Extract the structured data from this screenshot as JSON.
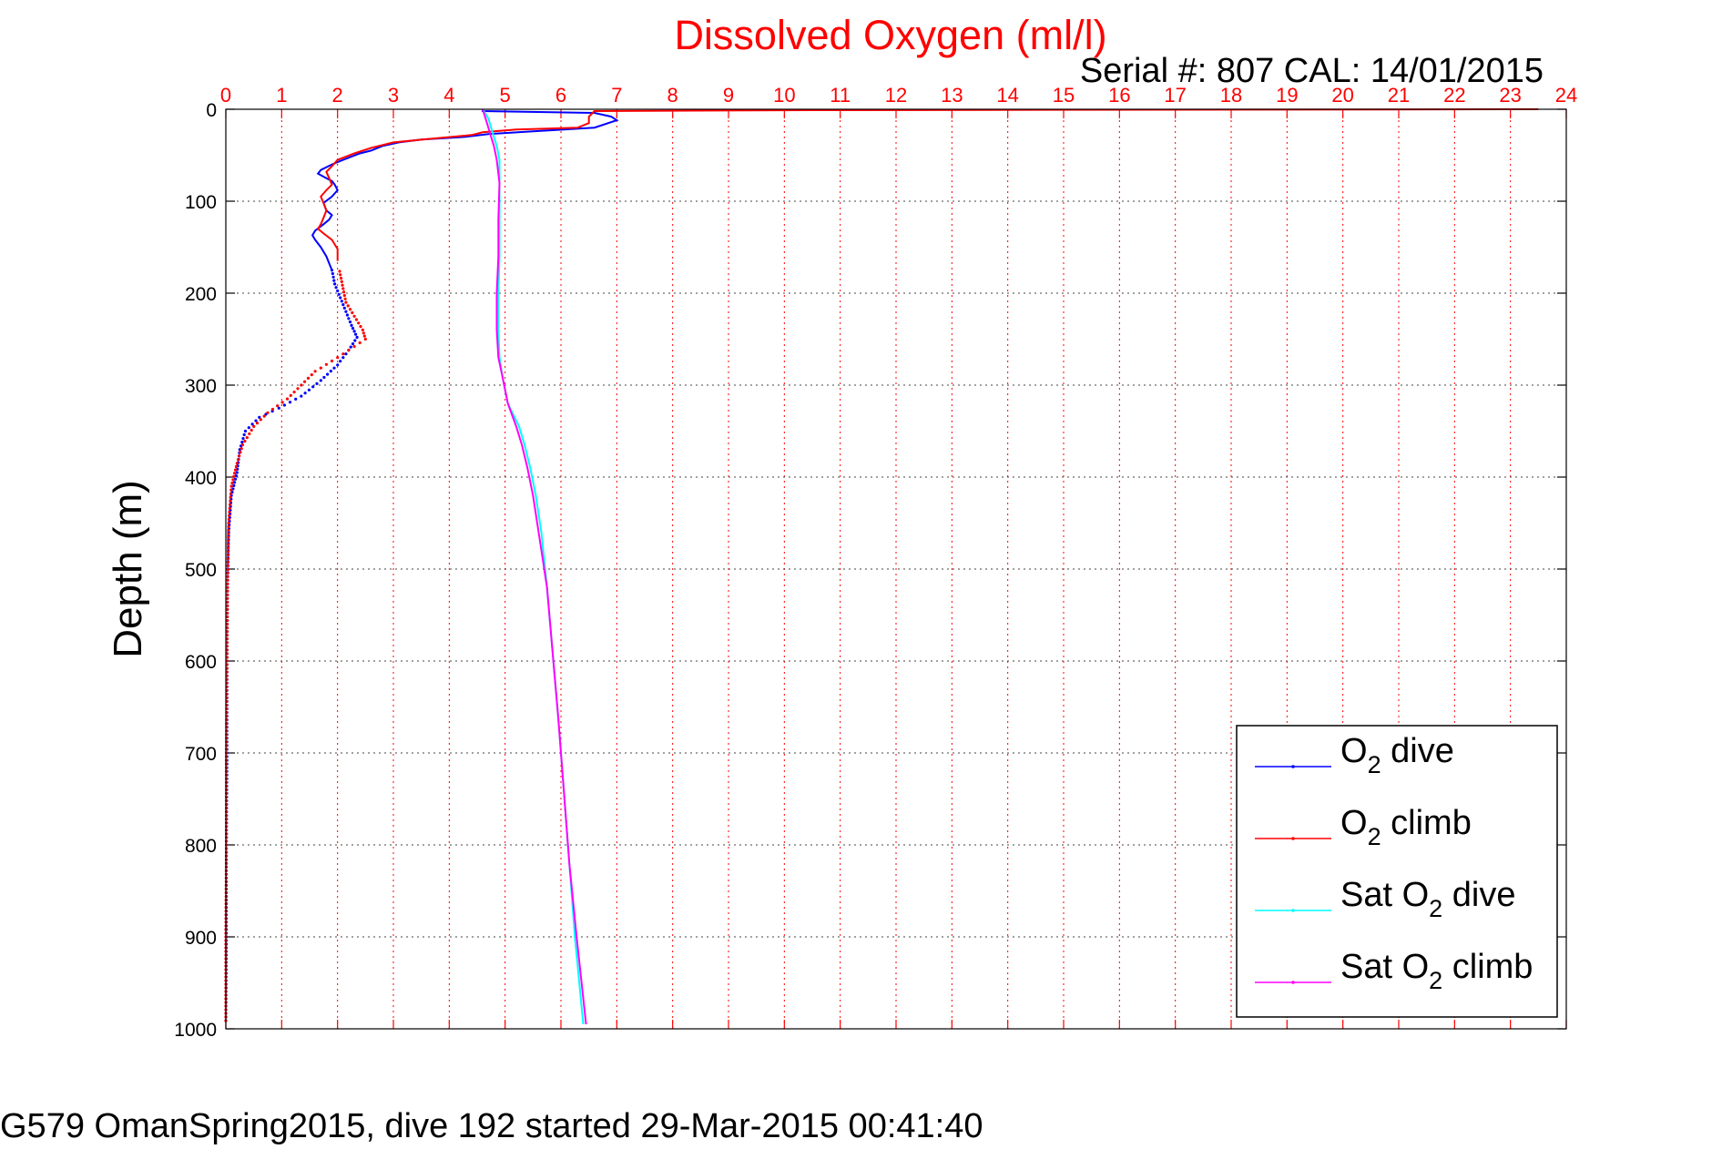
{
  "chart_data": {
    "type": "line",
    "title": "Dissolved Oxygen (ml/l)",
    "serial_label": "Serial #: 807  CAL: 14/01/2015",
    "ylabel": "Depth (m)",
    "caption": "G579 OmanSpring2015, dive 192 started 29-Mar-2015 00:41:40",
    "xlim": [
      0,
      24
    ],
    "ylim": [
      0,
      1000
    ],
    "y_reversed": true,
    "x_axis_position": "top",
    "x_ticks": [
      0,
      1,
      2,
      3,
      4,
      5,
      6,
      7,
      8,
      9,
      10,
      11,
      12,
      13,
      14,
      15,
      16,
      17,
      18,
      19,
      20,
      21,
      22,
      23,
      24
    ],
    "y_ticks": [
      0,
      100,
      200,
      300,
      400,
      500,
      600,
      700,
      800,
      900,
      1000
    ],
    "grid": true,
    "legend_position": "bottom-right",
    "colors": {
      "title": "#ff0000",
      "x_ticks": "#ff0000",
      "grid": "#ff0000",
      "axis": "#000000"
    },
    "series": [
      {
        "name": "O2 dive",
        "legend_main": "O",
        "legend_sub": "2",
        "legend_tail": " dive",
        "color": "#0000ff",
        "style": "line-top-dots-below",
        "points": [
          [
            4.6,
            0
          ],
          [
            4.6,
            2
          ],
          [
            6.6,
            4
          ],
          [
            6.9,
            8
          ],
          [
            7.0,
            12
          ],
          [
            6.6,
            20
          ],
          [
            5.5,
            24
          ],
          [
            4.7,
            27
          ],
          [
            4.3,
            30
          ],
          [
            3.5,
            33
          ],
          [
            3.1,
            36
          ],
          [
            2.8,
            40
          ],
          [
            2.6,
            45
          ],
          [
            2.4,
            48
          ],
          [
            2.1,
            55
          ],
          [
            1.9,
            60
          ],
          [
            1.7,
            66
          ],
          [
            1.65,
            70
          ],
          [
            1.8,
            75
          ],
          [
            1.9,
            78
          ],
          [
            1.95,
            82
          ],
          [
            2.0,
            88
          ],
          [
            1.9,
            95
          ],
          [
            1.75,
            102
          ],
          [
            1.8,
            110
          ],
          [
            1.9,
            115
          ],
          [
            1.85,
            120
          ],
          [
            1.75,
            125
          ],
          [
            1.6,
            132
          ],
          [
            1.55,
            137
          ],
          [
            1.6,
            142
          ],
          [
            1.7,
            150
          ],
          [
            1.8,
            160
          ],
          [
            1.9,
            175
          ],
          [
            1.95,
            190
          ],
          [
            2.05,
            205
          ],
          [
            2.15,
            220
          ],
          [
            2.25,
            235
          ],
          [
            2.35,
            248
          ],
          [
            2.2,
            262
          ],
          [
            2.0,
            278
          ],
          [
            1.7,
            295
          ],
          [
            1.35,
            312
          ],
          [
            0.95,
            325
          ],
          [
            0.6,
            335
          ],
          [
            0.35,
            350
          ],
          [
            0.25,
            370
          ],
          [
            0.2,
            395
          ],
          [
            0.1,
            420
          ],
          [
            0.05,
            460
          ],
          [
            0.03,
            520
          ],
          [
            0.02,
            600
          ],
          [
            0.02,
            700
          ],
          [
            0.01,
            800
          ],
          [
            0.01,
            900
          ],
          [
            0.0,
            995
          ]
        ]
      },
      {
        "name": "O2 climb",
        "legend_main": "O",
        "legend_sub": "2",
        "legend_tail": " climb",
        "color": "#ff0000",
        "style": "line-top-dots-below",
        "points": [
          [
            23.5,
            0
          ],
          [
            10.5,
            1
          ],
          [
            6.6,
            2
          ],
          [
            6.5,
            8
          ],
          [
            6.5,
            15
          ],
          [
            6.3,
            20
          ],
          [
            5.2,
            22
          ],
          [
            4.6,
            25
          ],
          [
            4.4,
            28
          ],
          [
            3.7,
            32
          ],
          [
            3.0,
            36
          ],
          [
            2.6,
            42
          ],
          [
            2.3,
            48
          ],
          [
            2.0,
            55
          ],
          [
            1.9,
            62
          ],
          [
            1.8,
            68
          ],
          [
            1.85,
            75
          ],
          [
            1.9,
            82
          ],
          [
            1.8,
            88
          ],
          [
            1.7,
            95
          ],
          [
            1.75,
            102
          ],
          [
            1.8,
            110
          ],
          [
            1.75,
            118
          ],
          [
            1.7,
            125
          ],
          [
            1.65,
            130
          ],
          [
            1.75,
            135
          ],
          [
            1.9,
            142
          ],
          [
            2.0,
            152
          ],
          [
            2.0,
            165
          ],
          [
            2.05,
            180
          ],
          [
            2.1,
            195
          ],
          [
            2.15,
            210
          ],
          [
            2.3,
            225
          ],
          [
            2.45,
            240
          ],
          [
            2.5,
            250
          ],
          [
            2.3,
            258
          ],
          [
            2.0,
            270
          ],
          [
            1.6,
            285
          ],
          [
            1.35,
            300
          ],
          [
            1.1,
            315
          ],
          [
            0.75,
            330
          ],
          [
            0.5,
            345
          ],
          [
            0.3,
            365
          ],
          [
            0.2,
            385
          ],
          [
            0.1,
            410
          ],
          [
            0.05,
            450
          ],
          [
            0.03,
            520
          ],
          [
            0.02,
            600
          ],
          [
            0.01,
            700
          ],
          [
            0.01,
            800
          ],
          [
            0.0,
            900
          ],
          [
            0.0,
            995
          ]
        ]
      },
      {
        "name": "Sat O2 dive",
        "legend_main": "Sat O",
        "legend_sub": "2",
        "legend_tail": " dive",
        "color": "#00ffff",
        "style": "line",
        "points": [
          [
            4.6,
            0
          ],
          [
            4.7,
            10
          ],
          [
            4.75,
            20
          ],
          [
            4.8,
            30
          ],
          [
            4.85,
            40
          ],
          [
            4.9,
            55
          ],
          [
            4.9,
            80
          ],
          [
            4.9,
            120
          ],
          [
            4.9,
            160
          ],
          [
            4.88,
            200
          ],
          [
            4.88,
            240
          ],
          [
            4.9,
            270
          ],
          [
            4.95,
            290
          ],
          [
            5.05,
            320
          ],
          [
            5.25,
            345
          ],
          [
            5.35,
            365
          ],
          [
            5.45,
            390
          ],
          [
            5.55,
            420
          ],
          [
            5.65,
            460
          ],
          [
            5.75,
            520
          ],
          [
            5.85,
            590
          ],
          [
            5.95,
            660
          ],
          [
            6.05,
            740
          ],
          [
            6.15,
            820
          ],
          [
            6.25,
            900
          ],
          [
            6.4,
            995
          ]
        ]
      },
      {
        "name": "Sat O2 climb",
        "legend_main": "Sat O",
        "legend_sub": "2",
        "legend_tail": " climb",
        "color": "#ff00ff",
        "style": "line",
        "points": [
          [
            4.6,
            0
          ],
          [
            4.65,
            10
          ],
          [
            4.7,
            20
          ],
          [
            4.75,
            30
          ],
          [
            4.8,
            40
          ],
          [
            4.85,
            55
          ],
          [
            4.9,
            80
          ],
          [
            4.88,
            120
          ],
          [
            4.88,
            160
          ],
          [
            4.85,
            200
          ],
          [
            4.85,
            240
          ],
          [
            4.88,
            270
          ],
          [
            4.95,
            290
          ],
          [
            5.05,
            320
          ],
          [
            5.2,
            345
          ],
          [
            5.3,
            365
          ],
          [
            5.4,
            390
          ],
          [
            5.5,
            420
          ],
          [
            5.6,
            460
          ],
          [
            5.75,
            520
          ],
          [
            5.85,
            590
          ],
          [
            5.95,
            660
          ],
          [
            6.05,
            740
          ],
          [
            6.15,
            820
          ],
          [
            6.28,
            900
          ],
          [
            6.45,
            995
          ]
        ]
      }
    ]
  }
}
